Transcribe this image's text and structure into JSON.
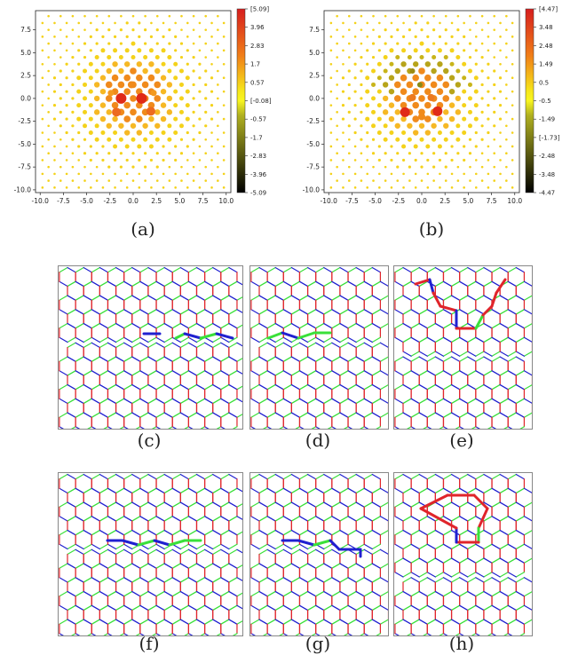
{
  "scatter_panels": [
    {
      "id": "a",
      "caption": "(a)",
      "x_ticks": [
        "-10.0",
        "-7.5",
        "-5.0",
        "-2.5",
        "0.0",
        "2.5",
        "5.0",
        "7.5",
        "10.0"
      ],
      "y_ticks": [
        "7.5",
        "5.0",
        "2.5",
        "0.0",
        "-2.5",
        "-5.0",
        "-7.5",
        "-10.0"
      ],
      "colorbar_labels": [
        "[5.09]",
        "3.96",
        "2.83",
        "1.7",
        "0.57",
        "[-0.08]",
        "-0.57",
        "-1.7",
        "-2.83",
        "-3.96",
        "-5.09"
      ],
      "colorbar_max": 5.09,
      "colorbar_min": -5.09
    },
    {
      "id": "b",
      "caption": "(b)",
      "x_ticks": [
        "-10.0",
        "-7.5",
        "-5.0",
        "-2.5",
        "0.0",
        "2.5",
        "5.0",
        "7.5",
        "10.0"
      ],
      "y_ticks": [
        "7.5",
        "5.0",
        "2.5",
        "0.0",
        "-2.5",
        "-5.0",
        "-7.5",
        "-10.0"
      ],
      "colorbar_labels": [
        "[4.47]",
        "3.48",
        "2.48",
        "1.49",
        "0.5",
        "-0.5",
        "-1.49",
        "[-1.73]",
        "-2.48",
        "-3.48",
        "-4.47"
      ],
      "colorbar_max": 4.47,
      "colorbar_min": -4.47
    }
  ],
  "lattice_panels": [
    {
      "id": "c",
      "caption": "(c)"
    },
    {
      "id": "d",
      "caption": "(d)"
    },
    {
      "id": "e",
      "caption": "(e)"
    },
    {
      "id": "f",
      "caption": "(f)"
    },
    {
      "id": "g",
      "caption": "(g)"
    },
    {
      "id": "h",
      "caption": "(h)"
    }
  ],
  "colors": {
    "bond_red": "#e0252b",
    "bond_green": "#3ae03a",
    "bond_blue": "#2020d0",
    "marker_yellow": "#f4d21a",
    "marker_orange": "#f08a1c",
    "marker_red": "#e02a18"
  }
}
